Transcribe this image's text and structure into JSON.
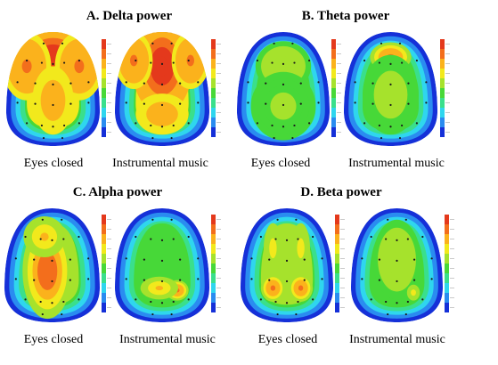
{
  "panels": [
    {
      "id": "A",
      "title": "A.  Delta power",
      "maps": [
        {
          "condition": "Eyes closed",
          "base_level": 0.62,
          "hotspots": [
            [
              0.5,
              0.22,
              0.42,
              0.28,
              0.38
            ],
            [
              0.22,
              0.3,
              0.26,
              0.3,
              0.22
            ],
            [
              0.78,
              0.3,
              0.26,
              0.3,
              0.22
            ],
            [
              0.5,
              0.6,
              0.22,
              0.3,
              0.15
            ]
          ]
        },
        {
          "condition": "Instrumental music",
          "base_level": 0.64,
          "hotspots": [
            [
              0.5,
              0.3,
              0.32,
              0.42,
              0.38
            ],
            [
              0.5,
              0.72,
              0.28,
              0.18,
              0.14
            ],
            [
              0.2,
              0.25,
              0.2,
              0.25,
              0.18
            ],
            [
              0.8,
              0.25,
              0.2,
              0.25,
              0.18
            ]
          ]
        }
      ]
    },
    {
      "id": "B",
      "title": "B.   Theta power",
      "maps": [
        {
          "condition": "Eyes closed",
          "base_level": 0.46,
          "hotspots": [
            [
              0.5,
              0.3,
              0.3,
              0.22,
              0.12
            ],
            [
              0.5,
              0.65,
              0.35,
              0.3,
              0.06
            ]
          ]
        },
        {
          "condition": "Instrumental music",
          "base_level": 0.46,
          "hotspots": [
            [
              0.5,
              0.22,
              0.22,
              0.13,
              0.4
            ],
            [
              0.5,
              0.55,
              0.3,
              0.35,
              0.08
            ]
          ]
        }
      ]
    },
    {
      "id": "C",
      "title": "C.  Alpha power",
      "maps": [
        {
          "condition": "Eyes closed",
          "base_level": 0.5,
          "hotspots": [
            [
              0.45,
              0.55,
              0.26,
              0.42,
              0.38
            ],
            [
              0.42,
              0.25,
              0.22,
              0.18,
              0.2
            ]
          ]
        },
        {
          "condition": "Instrumental music",
          "base_level": 0.46,
          "hotspots": [
            [
              0.66,
              0.72,
              0.12,
              0.09,
              0.42
            ],
            [
              0.47,
              0.7,
              0.2,
              0.1,
              0.24
            ]
          ]
        }
      ]
    },
    {
      "id": "D",
      "title": "D.   Beta power",
      "maps": [
        {
          "condition": "Eyes closed",
          "base_level": 0.5,
          "hotspots": [
            [
              0.35,
              0.7,
              0.13,
              0.12,
              0.34
            ],
            [
              0.65,
              0.7,
              0.13,
              0.12,
              0.34
            ],
            [
              0.35,
              0.35,
              0.1,
              0.22,
              0.16
            ],
            [
              0.65,
              0.35,
              0.1,
              0.22,
              0.16
            ]
          ]
        },
        {
          "condition": "Instrumental music",
          "base_level": 0.46,
          "hotspots": [
            [
              0.5,
              0.45,
              0.26,
              0.35,
              0.1
            ],
            [
              0.68,
              0.74,
              0.07,
              0.07,
              0.22
            ]
          ]
        }
      ]
    }
  ],
  "colorscale": {
    "colors": [
      "#1530d8",
      "#2a8cf0",
      "#2fd6ee",
      "#3adf8c",
      "#47d838",
      "#a6e22c",
      "#f2e91c",
      "#fbb21c",
      "#f36e1c",
      "#e4391c"
    ],
    "ticks": [
      "",
      "",
      "",
      "",
      "",
      "",
      "",
      "",
      "",
      ""
    ]
  }
}
